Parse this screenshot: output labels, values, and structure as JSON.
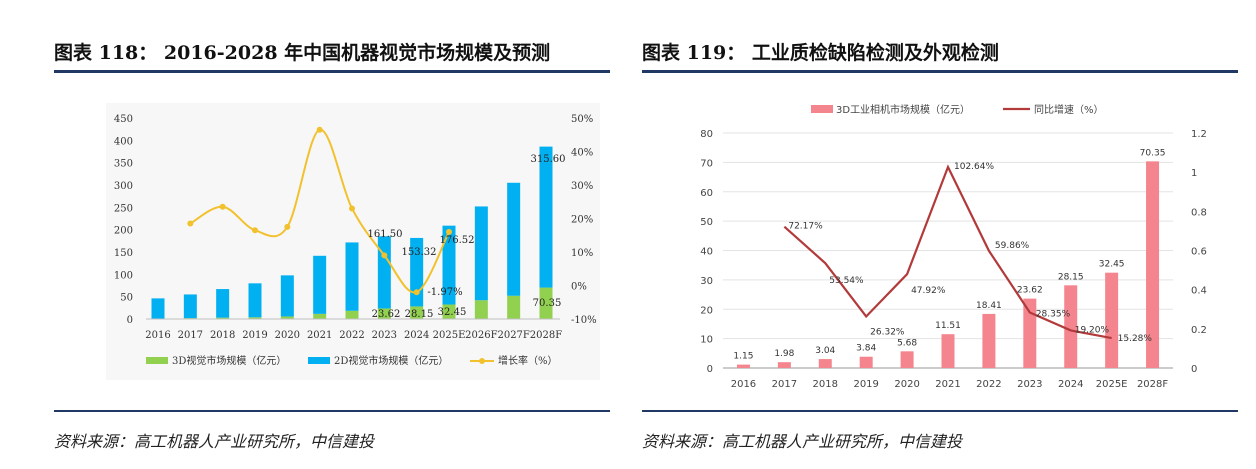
{
  "left": {
    "title": "图表 118：  2016-2028 年中国机器视觉市场规模及预测",
    "source": "资料来源：高工机器人产业研究所，中信建投"
  },
  "right": {
    "title": "图表 119：  工业质检缺陷检测及外观检测",
    "source": "资料来源：高工机器人产业研究所，中信建投"
  },
  "chart_data": [
    {
      "type": "bar",
      "stacked": true,
      "categories": [
        "2016",
        "2017",
        "2018",
        "2019",
        "2020",
        "2021",
        "2022",
        "2023",
        "2024",
        "2025E",
        "2026F",
        "2027F",
        "2028F"
      ],
      "series": [
        {
          "name": "3D视觉市场规模（亿元）",
          "kind": "bar",
          "color": "#92d050",
          "values": [
            1.15,
            1.98,
            3.04,
            3.84,
            5.68,
            11.51,
            18.41,
            23.62,
            28.15,
            32.45,
            42,
            52,
            70.35
          ]
        },
        {
          "name": "2D视觉市场规模（亿元）",
          "kind": "bar",
          "color": "#00b0f0",
          "values": [
            45,
            53,
            64,
            76,
            92,
            130,
            153,
            161.5,
            153.32,
            176.52,
            210,
            253,
            315.6
          ]
        },
        {
          "name": "增长率（%）",
          "kind": "line",
          "axis": "right",
          "color": "#f2c12e",
          "values": [
            null,
            18.5,
            23.5,
            16.5,
            17.5,
            46.5,
            23,
            9,
            -2,
            16,
            null,
            null,
            null
          ]
        }
      ],
      "annotations": [
        "161.50",
        "153.32",
        "176.52",
        "315.60",
        "23.62",
        "28.15",
        "32.45",
        "70.35",
        "-1.97%"
      ],
      "ylim_left": [
        0,
        450
      ],
      "yticks_left": [
        0,
        50,
        100,
        150,
        200,
        250,
        300,
        350,
        400,
        450
      ],
      "ylim_right": [
        -10,
        50
      ],
      "yticks_right": [
        "-10%",
        "0%",
        "10%",
        "20%",
        "30%",
        "40%",
        "50%"
      ],
      "legend": "bottom",
      "grid": false
    },
    {
      "type": "bar",
      "categories": [
        "2016",
        "2017",
        "2018",
        "2019",
        "2020",
        "2021",
        "2022",
        "2023",
        "2024",
        "2025E",
        "2028F"
      ],
      "series": [
        {
          "name": "3D工业相机市场规模（亿元）",
          "kind": "bar",
          "color": "#f4858e",
          "values": [
            1.15,
            1.98,
            3.04,
            3.84,
            5.68,
            11.51,
            18.41,
            23.62,
            28.15,
            32.45,
            70.35
          ],
          "labels": [
            "1.15",
            "1.98",
            "3.04",
            "3.84",
            "5.68",
            "11.51",
            "18.41",
            "23.62",
            "28.15",
            "32.45",
            "70.35"
          ]
        },
        {
          "name": "同比增速（%）",
          "kind": "line",
          "axis": "right",
          "color": "#b23a3a",
          "values": [
            null,
            0.7217,
            0.5354,
            0.2632,
            0.4792,
            1.0264,
            0.5986,
            0.2835,
            0.192,
            0.1528,
            null
          ],
          "labels": [
            "",
            "72.17%",
            "53.54%",
            "26.32%",
            "47.92%",
            "102.64%",
            "59.86%",
            "28.35%",
            "19.20%",
            "15.28%",
            ""
          ]
        }
      ],
      "ylim_left": [
        0,
        80
      ],
      "yticks_left": [
        0,
        10,
        20,
        30,
        40,
        50,
        60,
        70,
        80
      ],
      "ylim_right": [
        0,
        1.2
      ],
      "yticks_right": [
        "0",
        "0.2",
        "0.4",
        "0.6",
        "0.8",
        "1",
        "1.2"
      ],
      "legend": "top",
      "grid": true
    }
  ]
}
